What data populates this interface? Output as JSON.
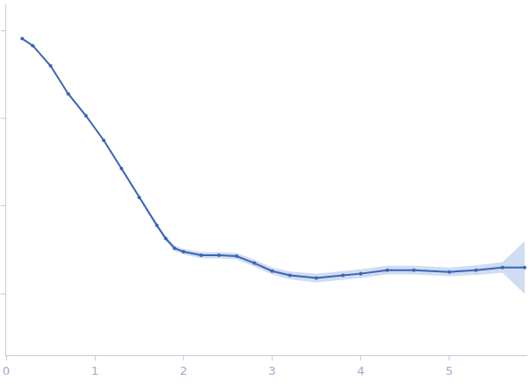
{
  "chart_data": {
    "type": "scatter",
    "x": [
      0.18,
      0.3,
      0.5,
      0.7,
      0.9,
      1.1,
      1.3,
      1.5,
      1.7,
      1.8,
      1.9,
      2.0,
      2.2,
      2.4,
      2.6,
      2.8,
      3.0,
      3.2,
      3.5,
      3.8,
      4.0,
      4.3,
      4.6,
      5.0,
      5.3,
      5.6,
      5.85
    ],
    "values": [
      2.91,
      2.83,
      2.6,
      2.28,
      2.03,
      1.75,
      1.43,
      1.1,
      0.78,
      0.63,
      0.52,
      0.48,
      0.44,
      0.44,
      0.43,
      0.35,
      0.26,
      0.21,
      0.18,
      0.21,
      0.23,
      0.27,
      0.27,
      0.25,
      0.27,
      0.3,
      0.3
    ],
    "errors": [
      0.005,
      0.005,
      0.005,
      0.006,
      0.007,
      0.008,
      0.01,
      0.012,
      0.02,
      0.025,
      0.03,
      0.03,
      0.035,
      0.035,
      0.035,
      0.04,
      0.04,
      0.045,
      0.05,
      0.05,
      0.05,
      0.05,
      0.05,
      0.05,
      0.055,
      0.06,
      0.3
    ],
    "color": "#3a66b5",
    "marker": "circle",
    "xlim": [
      0,
      5.88
    ],
    "xticks": [
      0,
      1,
      2,
      3,
      4,
      5
    ],
    "ylim": [
      -0.7,
      3.3
    ],
    "yticks": [
      0,
      1,
      2,
      3
    ],
    "tick_labels": "x",
    "grid": false
  }
}
